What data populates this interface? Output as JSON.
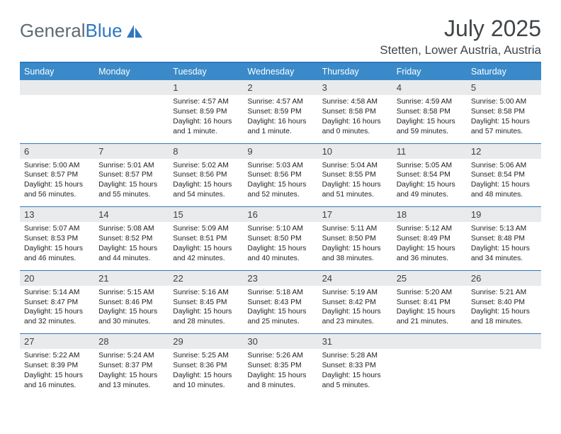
{
  "logo": {
    "text1": "General",
    "text2": "Blue"
  },
  "title": "July 2025",
  "location": "Stetten, Lower Austria, Austria",
  "colors": {
    "accent": "#3a8ac9",
    "rule": "#2f78bf",
    "dayband": "#e9eaeb",
    "text": "#404548"
  },
  "dow": [
    "Sunday",
    "Monday",
    "Tuesday",
    "Wednesday",
    "Thursday",
    "Friday",
    "Saturday"
  ],
  "weeks": [
    [
      {
        "n": "",
        "sr": "",
        "ss": "",
        "dl": ""
      },
      {
        "n": "",
        "sr": "",
        "ss": "",
        "dl": ""
      },
      {
        "n": "1",
        "sr": "Sunrise: 4:57 AM",
        "ss": "Sunset: 8:59 PM",
        "dl": "Daylight: 16 hours and 1 minute."
      },
      {
        "n": "2",
        "sr": "Sunrise: 4:57 AM",
        "ss": "Sunset: 8:59 PM",
        "dl": "Daylight: 16 hours and 1 minute."
      },
      {
        "n": "3",
        "sr": "Sunrise: 4:58 AM",
        "ss": "Sunset: 8:58 PM",
        "dl": "Daylight: 16 hours and 0 minutes."
      },
      {
        "n": "4",
        "sr": "Sunrise: 4:59 AM",
        "ss": "Sunset: 8:58 PM",
        "dl": "Daylight: 15 hours and 59 minutes."
      },
      {
        "n": "5",
        "sr": "Sunrise: 5:00 AM",
        "ss": "Sunset: 8:58 PM",
        "dl": "Daylight: 15 hours and 57 minutes."
      }
    ],
    [
      {
        "n": "6",
        "sr": "Sunrise: 5:00 AM",
        "ss": "Sunset: 8:57 PM",
        "dl": "Daylight: 15 hours and 56 minutes."
      },
      {
        "n": "7",
        "sr": "Sunrise: 5:01 AM",
        "ss": "Sunset: 8:57 PM",
        "dl": "Daylight: 15 hours and 55 minutes."
      },
      {
        "n": "8",
        "sr": "Sunrise: 5:02 AM",
        "ss": "Sunset: 8:56 PM",
        "dl": "Daylight: 15 hours and 54 minutes."
      },
      {
        "n": "9",
        "sr": "Sunrise: 5:03 AM",
        "ss": "Sunset: 8:56 PM",
        "dl": "Daylight: 15 hours and 52 minutes."
      },
      {
        "n": "10",
        "sr": "Sunrise: 5:04 AM",
        "ss": "Sunset: 8:55 PM",
        "dl": "Daylight: 15 hours and 51 minutes."
      },
      {
        "n": "11",
        "sr": "Sunrise: 5:05 AM",
        "ss": "Sunset: 8:54 PM",
        "dl": "Daylight: 15 hours and 49 minutes."
      },
      {
        "n": "12",
        "sr": "Sunrise: 5:06 AM",
        "ss": "Sunset: 8:54 PM",
        "dl": "Daylight: 15 hours and 48 minutes."
      }
    ],
    [
      {
        "n": "13",
        "sr": "Sunrise: 5:07 AM",
        "ss": "Sunset: 8:53 PM",
        "dl": "Daylight: 15 hours and 46 minutes."
      },
      {
        "n": "14",
        "sr": "Sunrise: 5:08 AM",
        "ss": "Sunset: 8:52 PM",
        "dl": "Daylight: 15 hours and 44 minutes."
      },
      {
        "n": "15",
        "sr": "Sunrise: 5:09 AM",
        "ss": "Sunset: 8:51 PM",
        "dl": "Daylight: 15 hours and 42 minutes."
      },
      {
        "n": "16",
        "sr": "Sunrise: 5:10 AM",
        "ss": "Sunset: 8:50 PM",
        "dl": "Daylight: 15 hours and 40 minutes."
      },
      {
        "n": "17",
        "sr": "Sunrise: 5:11 AM",
        "ss": "Sunset: 8:50 PM",
        "dl": "Daylight: 15 hours and 38 minutes."
      },
      {
        "n": "18",
        "sr": "Sunrise: 5:12 AM",
        "ss": "Sunset: 8:49 PM",
        "dl": "Daylight: 15 hours and 36 minutes."
      },
      {
        "n": "19",
        "sr": "Sunrise: 5:13 AM",
        "ss": "Sunset: 8:48 PM",
        "dl": "Daylight: 15 hours and 34 minutes."
      }
    ],
    [
      {
        "n": "20",
        "sr": "Sunrise: 5:14 AM",
        "ss": "Sunset: 8:47 PM",
        "dl": "Daylight: 15 hours and 32 minutes."
      },
      {
        "n": "21",
        "sr": "Sunrise: 5:15 AM",
        "ss": "Sunset: 8:46 PM",
        "dl": "Daylight: 15 hours and 30 minutes."
      },
      {
        "n": "22",
        "sr": "Sunrise: 5:16 AM",
        "ss": "Sunset: 8:45 PM",
        "dl": "Daylight: 15 hours and 28 minutes."
      },
      {
        "n": "23",
        "sr": "Sunrise: 5:18 AM",
        "ss": "Sunset: 8:43 PM",
        "dl": "Daylight: 15 hours and 25 minutes."
      },
      {
        "n": "24",
        "sr": "Sunrise: 5:19 AM",
        "ss": "Sunset: 8:42 PM",
        "dl": "Daylight: 15 hours and 23 minutes."
      },
      {
        "n": "25",
        "sr": "Sunrise: 5:20 AM",
        "ss": "Sunset: 8:41 PM",
        "dl": "Daylight: 15 hours and 21 minutes."
      },
      {
        "n": "26",
        "sr": "Sunrise: 5:21 AM",
        "ss": "Sunset: 8:40 PM",
        "dl": "Daylight: 15 hours and 18 minutes."
      }
    ],
    [
      {
        "n": "27",
        "sr": "Sunrise: 5:22 AM",
        "ss": "Sunset: 8:39 PM",
        "dl": "Daylight: 15 hours and 16 minutes."
      },
      {
        "n": "28",
        "sr": "Sunrise: 5:24 AM",
        "ss": "Sunset: 8:37 PM",
        "dl": "Daylight: 15 hours and 13 minutes."
      },
      {
        "n": "29",
        "sr": "Sunrise: 5:25 AM",
        "ss": "Sunset: 8:36 PM",
        "dl": "Daylight: 15 hours and 10 minutes."
      },
      {
        "n": "30",
        "sr": "Sunrise: 5:26 AM",
        "ss": "Sunset: 8:35 PM",
        "dl": "Daylight: 15 hours and 8 minutes."
      },
      {
        "n": "31",
        "sr": "Sunrise: 5:28 AM",
        "ss": "Sunset: 8:33 PM",
        "dl": "Daylight: 15 hours and 5 minutes."
      },
      {
        "n": "",
        "sr": "",
        "ss": "",
        "dl": ""
      },
      {
        "n": "",
        "sr": "",
        "ss": "",
        "dl": ""
      }
    ]
  ]
}
